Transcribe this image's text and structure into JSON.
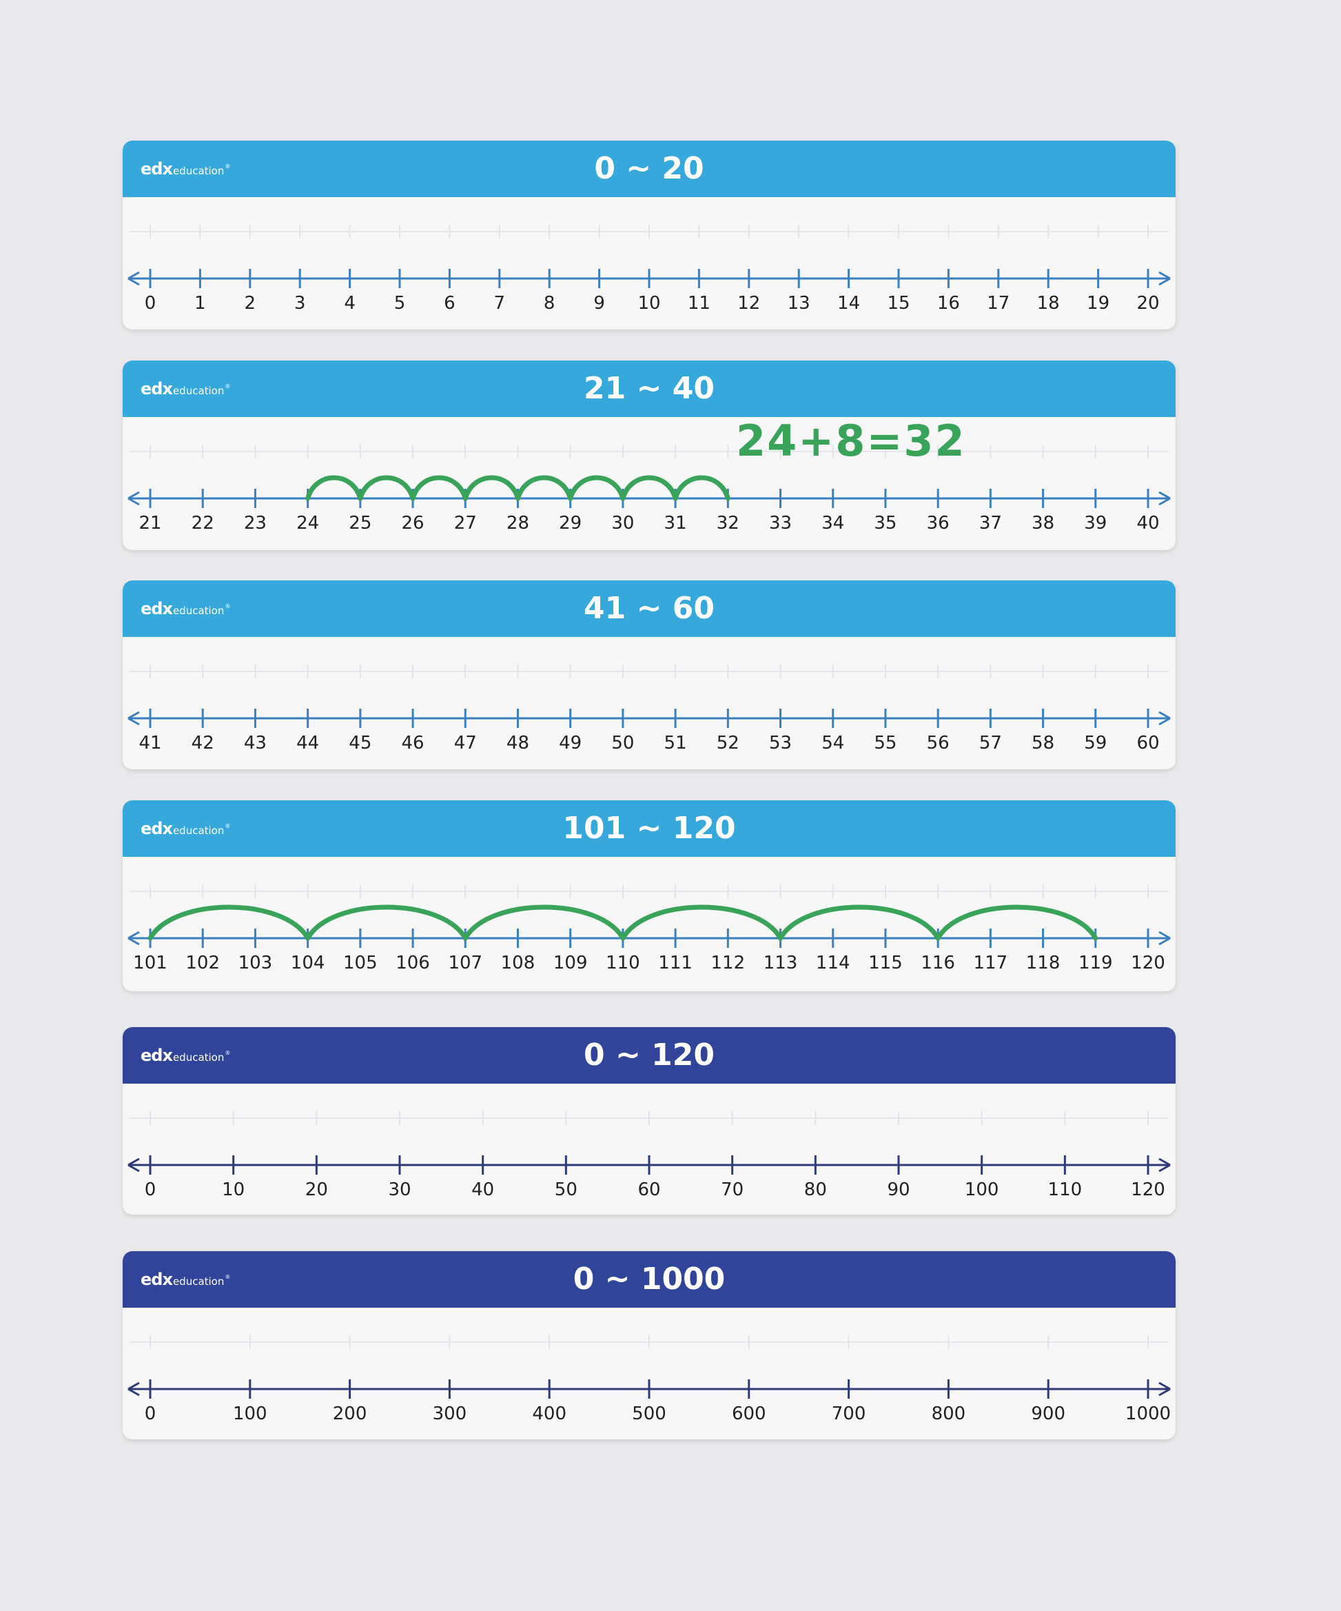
{
  "brand": {
    "name": "edx",
    "sub": "education",
    "mark": "®"
  },
  "colors": {
    "light_blue": "#37a8dc",
    "dark_blue": "#30449a",
    "light_line": "#3a7fc0",
    "dark_line": "#2f3a78",
    "marker_green": "#39a359"
  },
  "cards": [
    {
      "title": "0 ~ 20",
      "header": "light_blue",
      "line": "light_line",
      "labels": [
        "0",
        "1",
        "2",
        "3",
        "4",
        "5",
        "6",
        "7",
        "8",
        "9",
        "10",
        "11",
        "12",
        "13",
        "14",
        "15",
        "16",
        "17",
        "18",
        "19",
        "20"
      ],
      "arcs": []
    },
    {
      "title": "21 ~ 40",
      "header": "light_blue",
      "line": "light_line",
      "labels": [
        "21",
        "22",
        "23",
        "24",
        "25",
        "26",
        "27",
        "28",
        "29",
        "30",
        "31",
        "32",
        "33",
        "34",
        "35",
        "36",
        "37",
        "38",
        "39",
        "40"
      ],
      "arcs": [
        [
          3,
          4
        ],
        [
          4,
          5
        ],
        [
          5,
          6
        ],
        [
          6,
          7
        ],
        [
          7,
          8
        ],
        [
          8,
          9
        ],
        [
          9,
          10
        ],
        [
          10,
          11
        ]
      ],
      "annotation": "24+8=32"
    },
    {
      "title": "41 ~ 60",
      "header": "light_blue",
      "line": "light_line",
      "labels": [
        "41",
        "42",
        "43",
        "44",
        "45",
        "46",
        "47",
        "48",
        "49",
        "50",
        "51",
        "52",
        "53",
        "54",
        "55",
        "56",
        "57",
        "58",
        "59",
        "60"
      ],
      "arcs": []
    },
    {
      "title": "101 ~ 120",
      "header": "light_blue",
      "line": "light_line",
      "labels": [
        "101",
        "102",
        "103",
        "104",
        "105",
        "106",
        "107",
        "108",
        "109",
        "110",
        "111",
        "112",
        "113",
        "114",
        "115",
        "116",
        "117",
        "118",
        "119",
        "120"
      ],
      "arcs": [
        [
          0,
          3
        ],
        [
          3,
          6
        ],
        [
          6,
          9
        ],
        [
          9,
          12
        ],
        [
          12,
          15
        ],
        [
          15,
          18
        ]
      ]
    },
    {
      "title": "0 ~ 120",
      "header": "dark_blue",
      "line": "dark_line",
      "labels": [
        "0",
        "10",
        "20",
        "30",
        "40",
        "50",
        "60",
        "70",
        "80",
        "90",
        "100",
        "110",
        "120"
      ],
      "arcs": []
    },
    {
      "title": "0 ~ 1000",
      "header": "dark_blue",
      "line": "dark_line",
      "labels": [
        "0",
        "100",
        "200",
        "300",
        "400",
        "500",
        "600",
        "700",
        "800",
        "900",
        "1000"
      ],
      "arcs": []
    }
  ]
}
